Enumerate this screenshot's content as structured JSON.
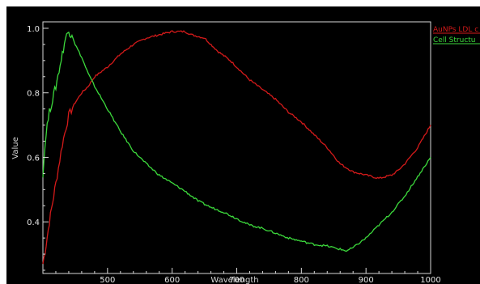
{
  "chart_data": {
    "type": "line",
    "xlabel": "Wavelength",
    "ylabel": "Value",
    "xlim": [
      400,
      1000
    ],
    "ylim": [
      0.24,
      1.02
    ],
    "x_ticks": [
      500,
      600,
      700,
      800,
      900,
      1000
    ],
    "y_ticks": [
      0.4,
      0.6,
      0.8,
      1.0
    ],
    "y_tick_labels": [
      "0.4",
      "0.6",
      "0.8",
      "1.0"
    ],
    "grid": false,
    "legend_position": "top-right (outside plot)",
    "background_color": "#000000",
    "axis_color": "#d8d8d8",
    "series": [
      {
        "name": "AuNPs LDL c",
        "color": "#d41a1a",
        "x": [
          400,
          405,
          410,
          415,
          420,
          430,
          440,
          450,
          460,
          470,
          480,
          500,
          520,
          540,
          560,
          580,
          600,
          620,
          630,
          650,
          670,
          690,
          700,
          720,
          740,
          760,
          780,
          800,
          820,
          840,
          860,
          880,
          900,
          920,
          930,
          940,
          950,
          960,
          980,
          1000
        ],
        "values": [
          0.27,
          0.33,
          0.4,
          0.46,
          0.52,
          0.64,
          0.73,
          0.77,
          0.8,
          0.82,
          0.85,
          0.88,
          0.92,
          0.95,
          0.97,
          0.98,
          0.99,
          0.99,
          0.98,
          0.97,
          0.93,
          0.9,
          0.88,
          0.84,
          0.81,
          0.78,
          0.74,
          0.71,
          0.67,
          0.63,
          0.58,
          0.555,
          0.545,
          0.535,
          0.54,
          0.545,
          0.56,
          0.58,
          0.63,
          0.7
        ]
      },
      {
        "name": "Cell Structu",
        "color": "#3cd93c",
        "x": [
          400,
          405,
          410,
          415,
          420,
          425,
          430,
          435,
          440,
          445,
          450,
          460,
          470,
          480,
          500,
          520,
          540,
          560,
          580,
          600,
          620,
          640,
          660,
          680,
          700,
          720,
          740,
          760,
          780,
          800,
          820,
          840,
          860,
          870,
          880,
          900,
          920,
          940,
          960,
          980,
          1000
        ],
        "values": [
          0.55,
          0.68,
          0.74,
          0.78,
          0.82,
          0.87,
          0.92,
          0.97,
          0.99,
          0.98,
          0.95,
          0.91,
          0.86,
          0.82,
          0.75,
          0.68,
          0.62,
          0.58,
          0.545,
          0.52,
          0.495,
          0.465,
          0.445,
          0.43,
          0.41,
          0.39,
          0.38,
          0.365,
          0.35,
          0.34,
          0.33,
          0.325,
          0.315,
          0.31,
          0.32,
          0.35,
          0.39,
          0.43,
          0.48,
          0.54,
          0.6
        ]
      }
    ]
  }
}
